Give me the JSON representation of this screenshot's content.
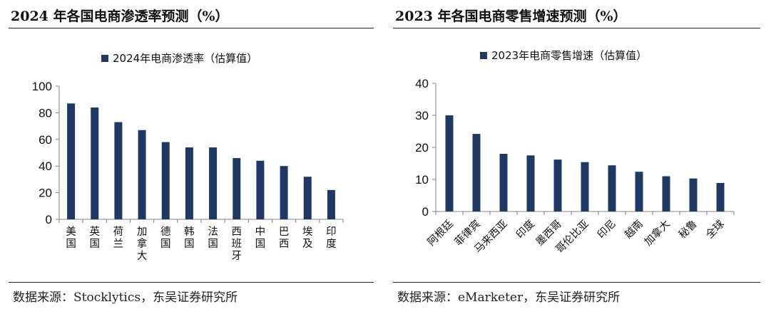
{
  "colors": {
    "bar": "#1F3864",
    "axis": "#808080"
  },
  "left": {
    "title": "2024 年各国电商渗透率预测（%）",
    "source": "数据来源：Stocklytics，东吴证券研究所"
  },
  "right": {
    "title": "2023 年各国电商零售增速预测（%）",
    "source": "数据来源：eMarketer，东吴证券研究所"
  },
  "chart_data": [
    {
      "type": "bar",
      "legend": "2024年电商渗透率（估算值）",
      "legend_position": "top",
      "categories": [
        "美国",
        "英国",
        "荷兰",
        "加拿大",
        "德国",
        "韩国",
        "法国",
        "西班牙",
        "中国",
        "巴西",
        "埃及",
        "印度"
      ],
      "series": [
        {
          "name": "2024年电商渗透率（估算值）",
          "values": [
            87,
            84,
            73,
            67,
            58,
            54,
            54,
            46,
            44,
            40,
            32,
            22
          ]
        }
      ],
      "ylim": [
        0,
        100
      ],
      "yticks": [
        0,
        20,
        40,
        60,
        80,
        100
      ],
      "grid": false,
      "label_orientation": "vertical"
    },
    {
      "type": "bar",
      "legend": "2023年电商零售增速（估算值）",
      "legend_position": "top",
      "categories": [
        "阿根廷",
        "菲律宾",
        "马来西亚",
        "印度",
        "墨西哥",
        "哥伦比亚",
        "印尼",
        "越南",
        "加拿大",
        "秘鲁",
        "全球"
      ],
      "series": [
        {
          "name": "2023年电商零售增速（估算值）",
          "values": [
            30,
            24.2,
            18,
            17.5,
            16.2,
            15.4,
            14.4,
            12.4,
            11,
            10.3,
            8.9
          ]
        }
      ],
      "ylim": [
        0,
        40
      ],
      "yticks": [
        0,
        10,
        20,
        30,
        40
      ],
      "grid": false,
      "label_orientation": "diagonal"
    }
  ]
}
